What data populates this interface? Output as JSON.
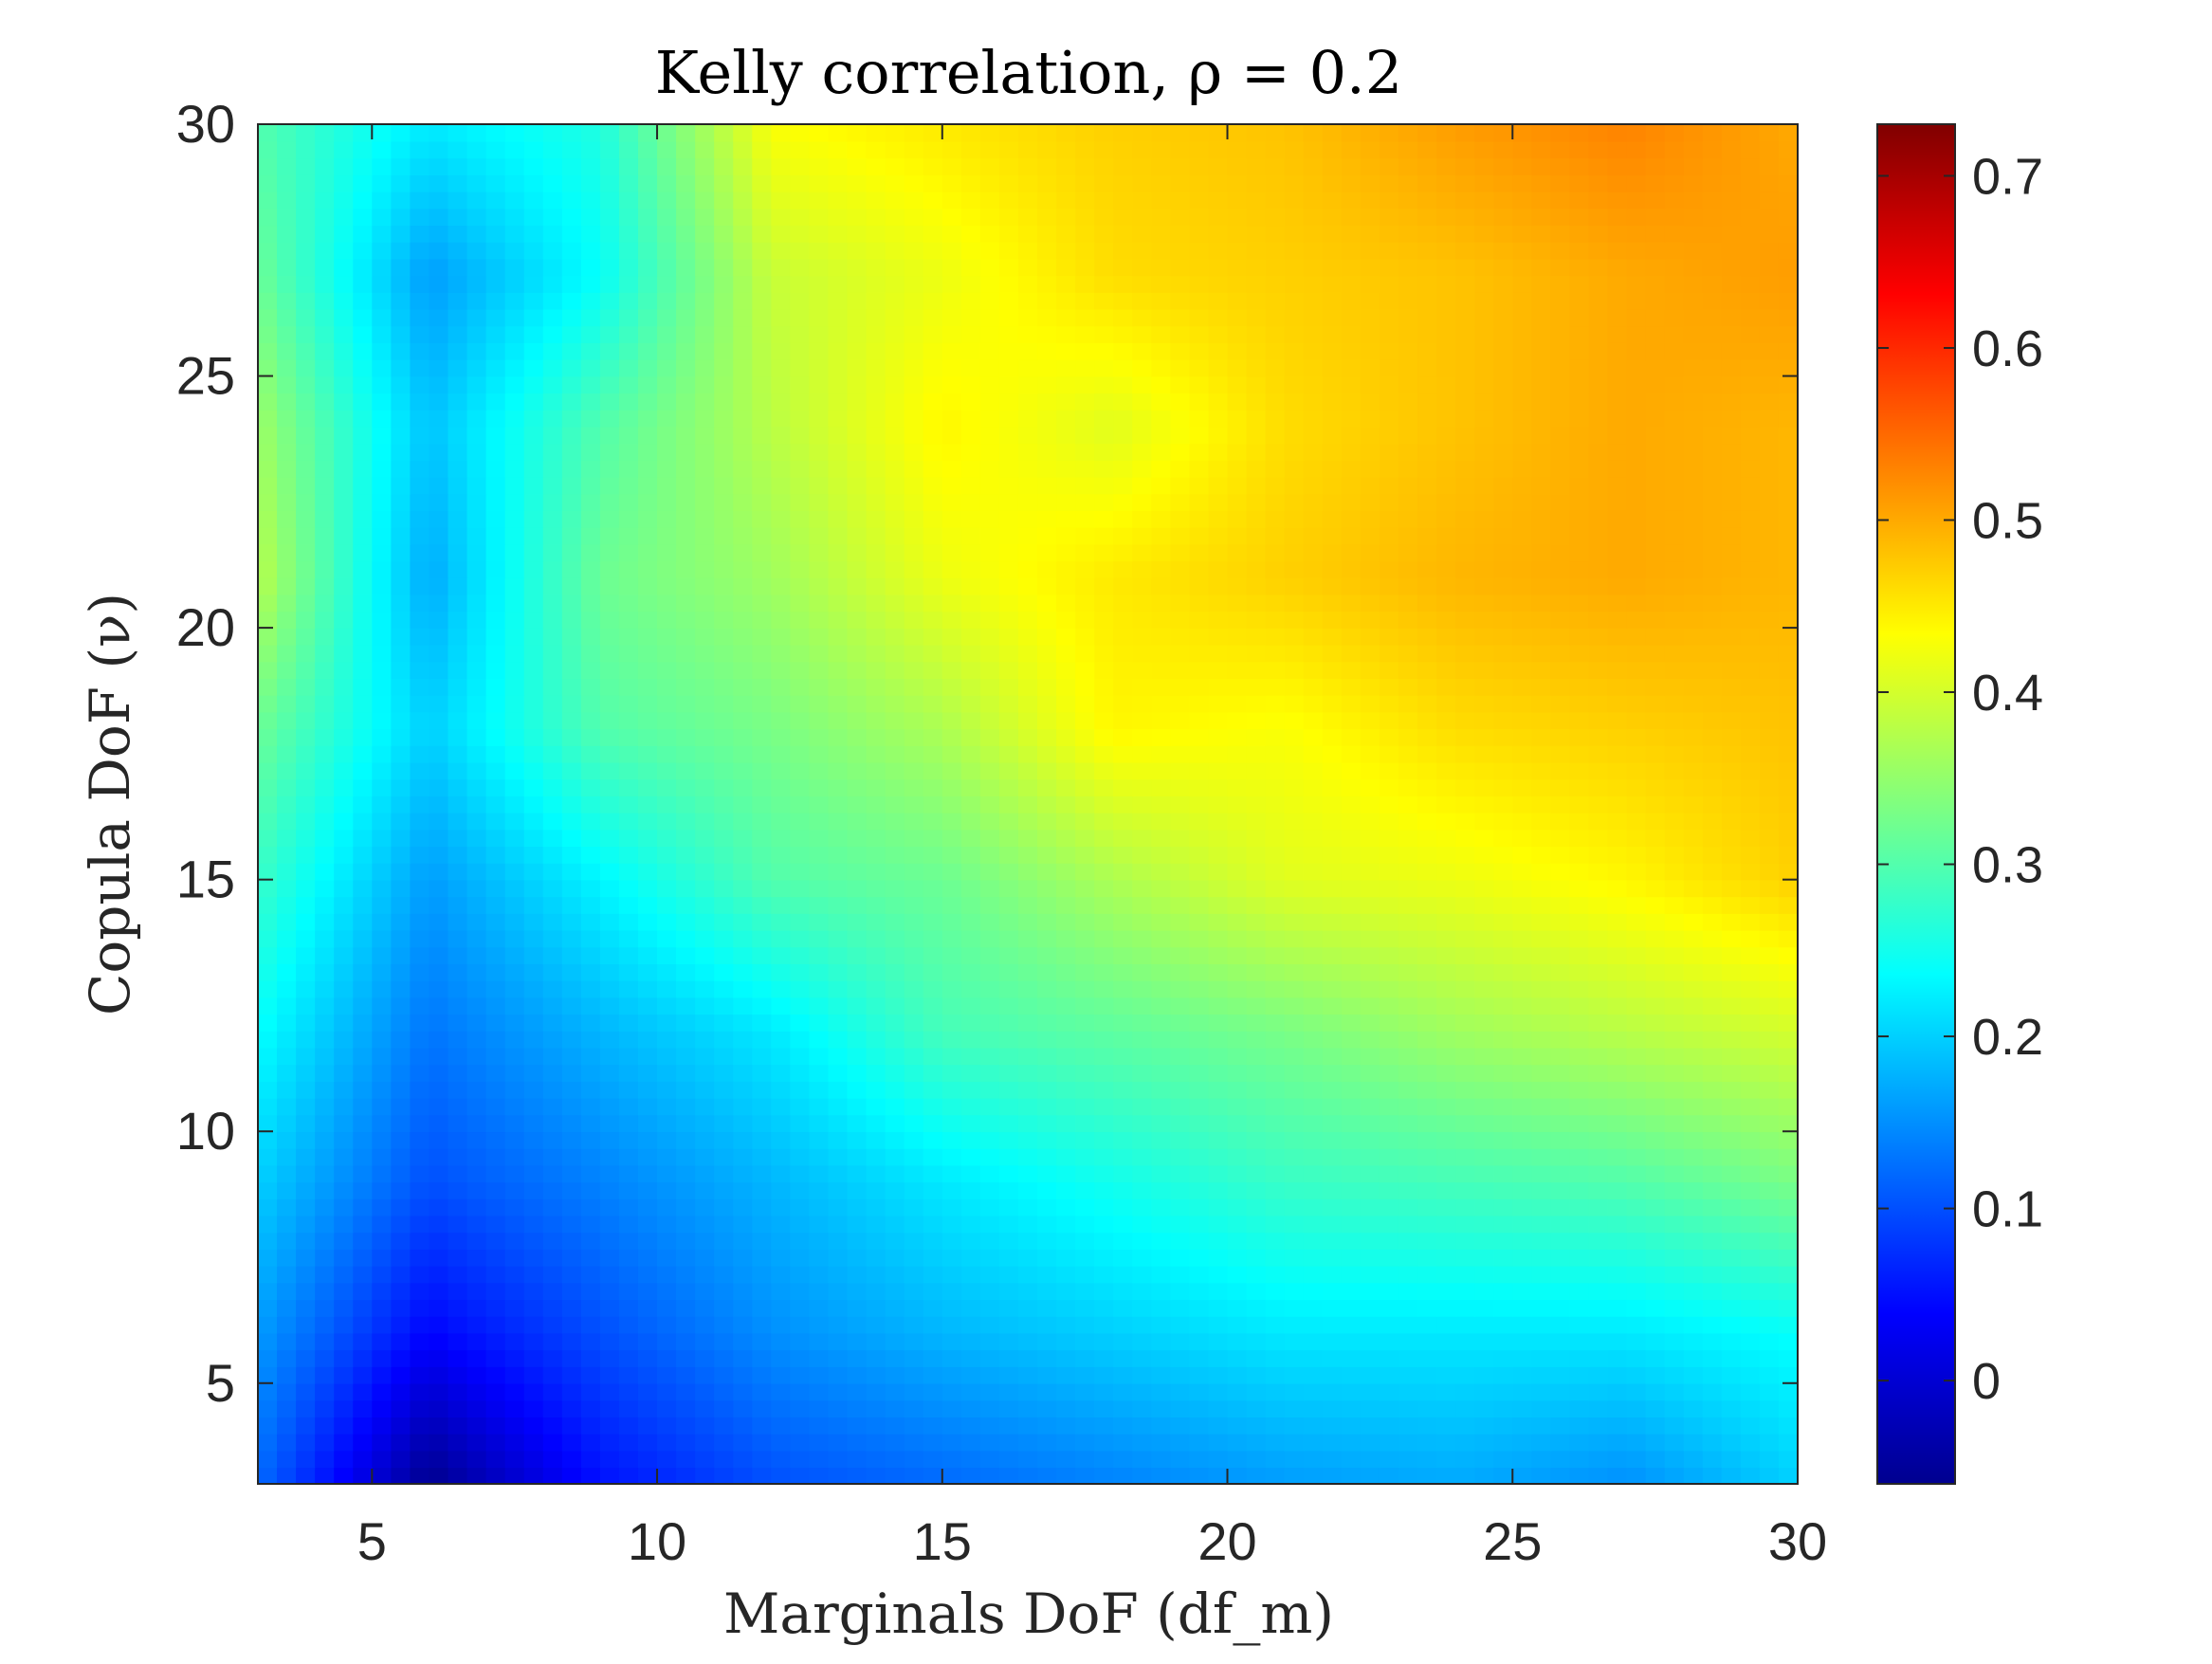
{
  "chart_data": {
    "type": "heatmap",
    "title": "Kelly correlation, ρ = 0.2",
    "xlabel": "Marginals DoF (df_m)",
    "ylabel": "Copula DoF (ν)",
    "xlim": [
      3,
      30
    ],
    "ylim": [
      3,
      30
    ],
    "x_ticks": [
      5,
      10,
      15,
      20,
      25,
      30
    ],
    "y_ticks": [
      5,
      10,
      15,
      20,
      25,
      30
    ],
    "colorbar": {
      "colormap": "jet",
      "limits": [
        -0.06,
        0.73
      ],
      "ticks": [
        0,
        0.1,
        0.2,
        0.3,
        0.4,
        0.5,
        0.6,
        0.7
      ],
      "tick_labels": [
        "0",
        "0.1",
        "0.2",
        "0.3",
        "0.4",
        "0.5",
        "0.6",
        "0.7"
      ],
      "placement": "right"
    },
    "grid": "off",
    "x": [
      3,
      6,
      9,
      12,
      15,
      18,
      21,
      24,
      27,
      30
    ],
    "y": [
      3,
      6,
      9,
      12,
      15,
      18,
      21,
      24,
      27,
      30
    ],
    "z": [
      [
        0.12,
        -0.05,
        0.05,
        0.1,
        0.12,
        0.14,
        0.16,
        0.17,
        0.15,
        0.2
      ],
      [
        0.16,
        0.04,
        0.1,
        0.15,
        0.18,
        0.2,
        0.22,
        0.22,
        0.22,
        0.24
      ],
      [
        0.2,
        0.1,
        0.14,
        0.18,
        0.22,
        0.25,
        0.28,
        0.29,
        0.3,
        0.33
      ],
      [
        0.24,
        0.13,
        0.18,
        0.22,
        0.29,
        0.31,
        0.33,
        0.36,
        0.38,
        0.4
      ],
      [
        0.28,
        0.16,
        0.23,
        0.3,
        0.32,
        0.37,
        0.41,
        0.42,
        0.44,
        0.47
      ],
      [
        0.32,
        0.2,
        0.3,
        0.33,
        0.37,
        0.44,
        0.43,
        0.46,
        0.47,
        0.48
      ],
      [
        0.38,
        0.17,
        0.32,
        0.36,
        0.42,
        0.45,
        0.47,
        0.49,
        0.5,
        0.49
      ],
      [
        0.36,
        0.19,
        0.3,
        0.38,
        0.44,
        0.41,
        0.46,
        0.48,
        0.5,
        0.49
      ],
      [
        0.32,
        0.16,
        0.24,
        0.39,
        0.42,
        0.46,
        0.47,
        0.48,
        0.5,
        0.51
      ],
      [
        0.3,
        0.22,
        0.26,
        0.43,
        0.45,
        0.47,
        0.48,
        0.51,
        0.53,
        0.5
      ]
    ]
  }
}
